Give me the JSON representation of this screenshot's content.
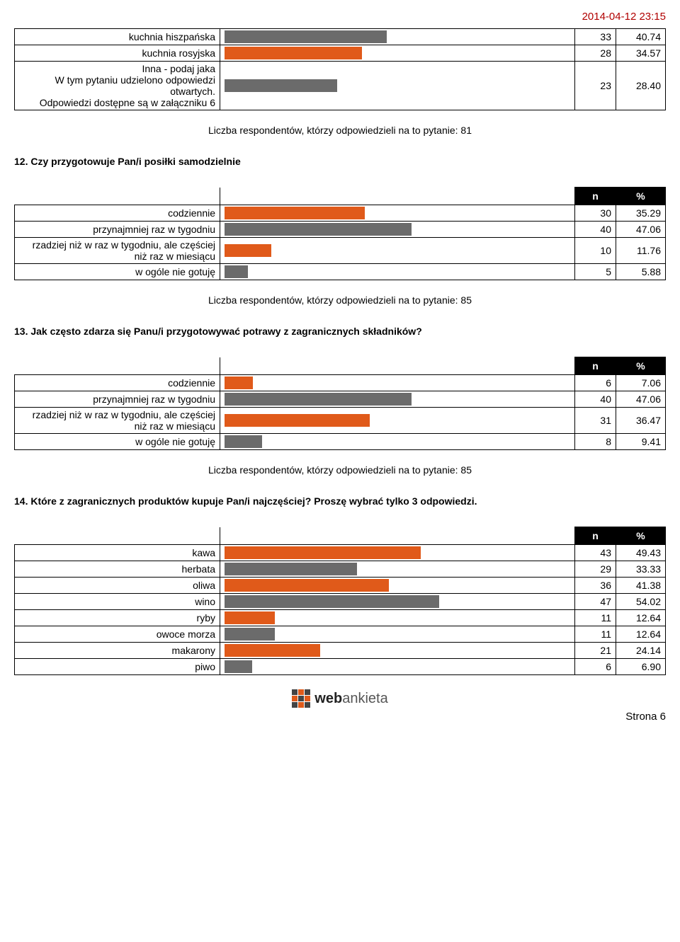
{
  "timestamp": "2014-04-12 23:15",
  "colors": {
    "gray": "#6b6b6b",
    "orange": "#e05a1a"
  },
  "bar_max_percent": 87.0,
  "table_top": {
    "rows": [
      {
        "label": "kuchnia hiszpańska",
        "n": "33",
        "pct": "40.74",
        "bar_pct": 40.74,
        "color": "gray"
      },
      {
        "label": "kuchnia rosyjska",
        "n": "28",
        "pct": "34.57",
        "bar_pct": 34.57,
        "color": "orange"
      },
      {
        "label": "Inna - podaj jaka\nW tym pytaniu udzielono odpowiedzi otwartych.\nOdpowiedzi dostępne są w załączniku 6",
        "n": "23",
        "pct": "28.40",
        "bar_pct": 28.4,
        "color": "gray"
      }
    ],
    "respondents": "Liczba respondentów, którzy odpowiedzieli na to pytanie: 81"
  },
  "q12": {
    "title": "12. Czy przygotowuje Pan/i posiłki samodzielnie",
    "header_n": "n",
    "header_pct": "%",
    "rows": [
      {
        "label": "codziennie",
        "n": "30",
        "pct": "35.29",
        "bar_pct": 35.29,
        "color": "orange"
      },
      {
        "label": "przynajmniej raz w tygodniu",
        "n": "40",
        "pct": "47.06",
        "bar_pct": 47.06,
        "color": "gray"
      },
      {
        "label": "rzadziej niż w raz w tygodniu, ale częściej niż raz w miesiącu",
        "n": "10",
        "pct": "11.76",
        "bar_pct": 11.76,
        "color": "orange"
      },
      {
        "label": "w ogóle nie gotuję",
        "n": "5",
        "pct": "5.88",
        "bar_pct": 5.88,
        "color": "gray"
      }
    ],
    "respondents": "Liczba respondentów, którzy odpowiedzieli na to pytanie: 85"
  },
  "q13": {
    "title": "13. Jak często zdarza się Panu/i przygotowywać potrawy z zagranicznych składników?",
    "header_n": "n",
    "header_pct": "%",
    "rows": [
      {
        "label": "codziennie",
        "n": "6",
        "pct": "7.06",
        "bar_pct": 7.06,
        "color": "orange"
      },
      {
        "label": "przynajmniej raz w tygodniu",
        "n": "40",
        "pct": "47.06",
        "bar_pct": 47.06,
        "color": "gray"
      },
      {
        "label": "rzadziej niż w raz w tygodniu, ale częściej niż raz w miesiącu",
        "n": "31",
        "pct": "36.47",
        "bar_pct": 36.47,
        "color": "orange"
      },
      {
        "label": "w ogóle nie gotuję",
        "n": "8",
        "pct": "9.41",
        "bar_pct": 9.41,
        "color": "gray"
      }
    ],
    "respondents": "Liczba respondentów, którzy odpowiedzieli na to pytanie: 85"
  },
  "q14": {
    "title": "14. Które z zagranicznych produktów kupuje Pan/i najczęściej? Proszę wybrać tylko 3 odpowiedzi.",
    "header_n": "n",
    "header_pct": "%",
    "rows": [
      {
        "label": "kawa",
        "n": "43",
        "pct": "49.43",
        "bar_pct": 49.43,
        "color": "orange"
      },
      {
        "label": "herbata",
        "n": "29",
        "pct": "33.33",
        "bar_pct": 33.33,
        "color": "gray"
      },
      {
        "label": "oliwa",
        "n": "36",
        "pct": "41.38",
        "bar_pct": 41.38,
        "color": "orange"
      },
      {
        "label": "wino",
        "n": "47",
        "pct": "54.02",
        "bar_pct": 54.02,
        "color": "gray"
      },
      {
        "label": "ryby",
        "n": "11",
        "pct": "12.64",
        "bar_pct": 12.64,
        "color": "orange"
      },
      {
        "label": "owoce morza",
        "n": "11",
        "pct": "12.64",
        "bar_pct": 12.64,
        "color": "gray"
      },
      {
        "label": "makarony",
        "n": "21",
        "pct": "24.14",
        "bar_pct": 24.14,
        "color": "orange"
      },
      {
        "label": "piwo",
        "n": "6",
        "pct": "6.90",
        "bar_pct": 6.9,
        "color": "gray"
      }
    ]
  },
  "brand_web": "web",
  "brand_ankieta": "ankieta",
  "page_label": "Strona 6"
}
